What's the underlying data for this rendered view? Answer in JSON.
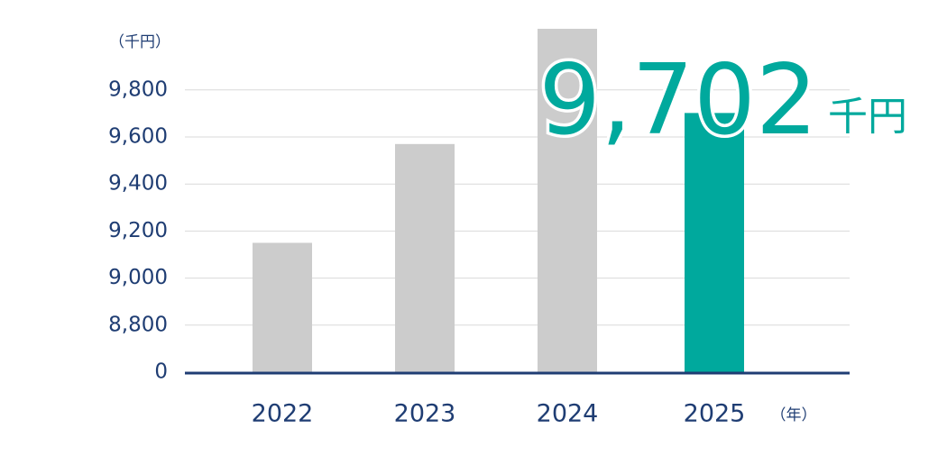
{
  "chart_data": {
    "type": "bar",
    "y_unit": "（千円）",
    "x_unit": "（年）",
    "categories": [
      "2022",
      "2023",
      "2024",
      "2025"
    ],
    "values": [
      9150,
      9570,
      10060,
      9702
    ],
    "value_labels": [
      null,
      null,
      null,
      "9,702"
    ],
    "value_label_unit": "千円",
    "colors": [
      "#cccccc",
      "#cccccc",
      "#cccccc",
      "#00a99d"
    ],
    "ylim": [
      0,
      10100
    ],
    "yticks": [
      0,
      {
        "value": 8800,
        "label": "8,800"
      },
      {
        "value": 9000,
        "label": "9,000"
      },
      {
        "value": 9200,
        "label": "9,200"
      },
      {
        "value": 9400,
        "label": "9,400"
      },
      {
        "value": 9600,
        "label": "9,600"
      },
      {
        "value": 9800,
        "label": "9,800"
      }
    ],
    "axis_break": true,
    "grid": true
  }
}
